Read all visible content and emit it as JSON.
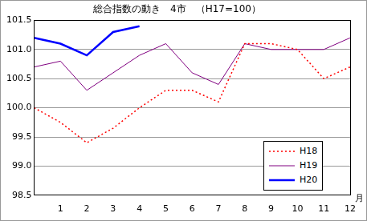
{
  "chart_data": {
    "type": "line",
    "title": "総合指数の動き　4市　（H17=100）",
    "x_label": "月",
    "categories": [
      null,
      "1",
      "2",
      "3",
      "4",
      "5",
      "6",
      "7",
      "8",
      "9",
      "10",
      "11",
      "12"
    ],
    "series": [
      {
        "name": "H18",
        "color": "#ff0000",
        "line_style": "dotted",
        "values": [
          100.0,
          99.75,
          99.4,
          99.65,
          100.0,
          100.3,
          100.3,
          100.1,
          101.1,
          101.1,
          101.0,
          100.5,
          100.7
        ]
      },
      {
        "name": "H19",
        "color": "#800080",
        "line_style": "solid",
        "values": [
          100.7,
          100.8,
          100.3,
          100.6,
          100.9,
          101.1,
          100.6,
          100.4,
          101.1,
          101.0,
          101.0,
          101.0,
          101.2
        ]
      },
      {
        "name": "H20",
        "color": "#0000ff",
        "line_style": "thick",
        "values": [
          101.2,
          101.1,
          100.9,
          101.3,
          101.4,
          null,
          null,
          null,
          null,
          null,
          null,
          null,
          null
        ]
      }
    ],
    "ylim": [
      98.5,
      101.5
    ],
    "yticks": [
      98.5,
      {
        "value": 99,
        "label": "99.0"
      },
      99.5,
      {
        "value": 100,
        "label": "100.0"
      },
      100.5,
      {
        "value": 101,
        "label": "101.0"
      },
      101.5
    ],
    "grid": true,
    "legend": "lower right"
  }
}
